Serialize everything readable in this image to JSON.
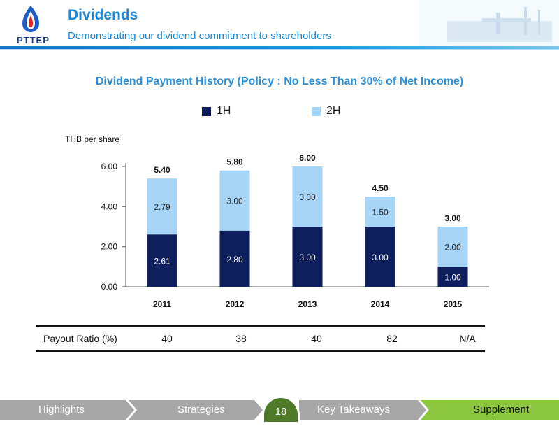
{
  "header": {
    "logo_text": "PTTEP",
    "title": "Dividends",
    "subtitle": "Demonstrating our dividend commitment to shareholders"
  },
  "colors": {
    "accent": "#1a86d6",
    "series_1h": "#0d1f5c",
    "series_2h": "#a6d5f7",
    "footer_grey": "#a7a7a7",
    "footer_active": "#8cc63f"
  },
  "chart_data": {
    "type": "bar",
    "stacked": true,
    "title": "Dividend Payment History (Policy : No Less Than 30% of Net Income)",
    "ylabel": "THB per share",
    "xlabel": "",
    "categories": [
      "2011",
      "2012",
      "2013",
      "2014",
      "2015"
    ],
    "series": [
      {
        "name": "1H",
        "values": [
          2.61,
          2.8,
          3.0,
          3.0,
          1.0
        ],
        "labels": [
          "2.61",
          "2.80",
          "3.00",
          "3.00",
          "1.00"
        ]
      },
      {
        "name": "2H",
        "values": [
          2.79,
          3.0,
          3.0,
          1.5,
          2.0
        ],
        "labels": [
          "2.79",
          "3.00",
          "3.00",
          "1.50",
          "2.00"
        ]
      }
    ],
    "totals": [
      "5.40",
      "5.80",
      "6.00",
      "4.50",
      "3.00"
    ],
    "yticks": [
      "0.00",
      "2.00",
      "4.00",
      "6.00"
    ],
    "ylim": [
      0,
      6
    ],
    "legend": "top",
    "grid": false
  },
  "payout": {
    "label": "Payout Ratio (%)",
    "values": [
      "40",
      "38",
      "40",
      "82",
      "N/A"
    ]
  },
  "footer": {
    "items": [
      "Highlights",
      "Strategies",
      "Key Takeaways",
      "Supplement"
    ],
    "page_number": "18"
  }
}
